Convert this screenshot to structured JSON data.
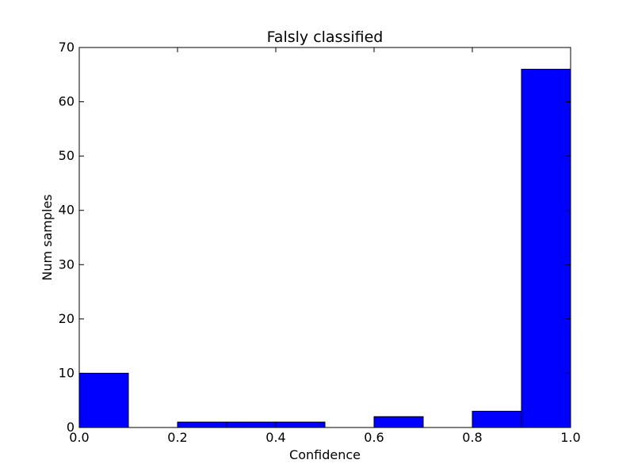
{
  "chart_data": {
    "type": "bar",
    "title": "Falsly classified",
    "xlabel": "Confidence",
    "ylabel": "Num samples",
    "xlim": [
      0.0,
      1.0
    ],
    "ylim": [
      0,
      70
    ],
    "x_ticks": [
      "0.0",
      "0.2",
      "0.4",
      "0.6",
      "0.8",
      "1.0"
    ],
    "y_ticks": [
      "0",
      "10",
      "20",
      "30",
      "40",
      "50",
      "60",
      "70"
    ],
    "bin_edges": [
      0.0,
      0.1,
      0.2,
      0.3,
      0.4,
      0.5,
      0.6,
      0.7,
      0.8,
      0.9,
      1.0
    ],
    "values": [
      10,
      0,
      1,
      1,
      1,
      0,
      2,
      0,
      3,
      66
    ],
    "grid": false,
    "bar_color": "#0000ff",
    "edge_color": "#000000"
  }
}
